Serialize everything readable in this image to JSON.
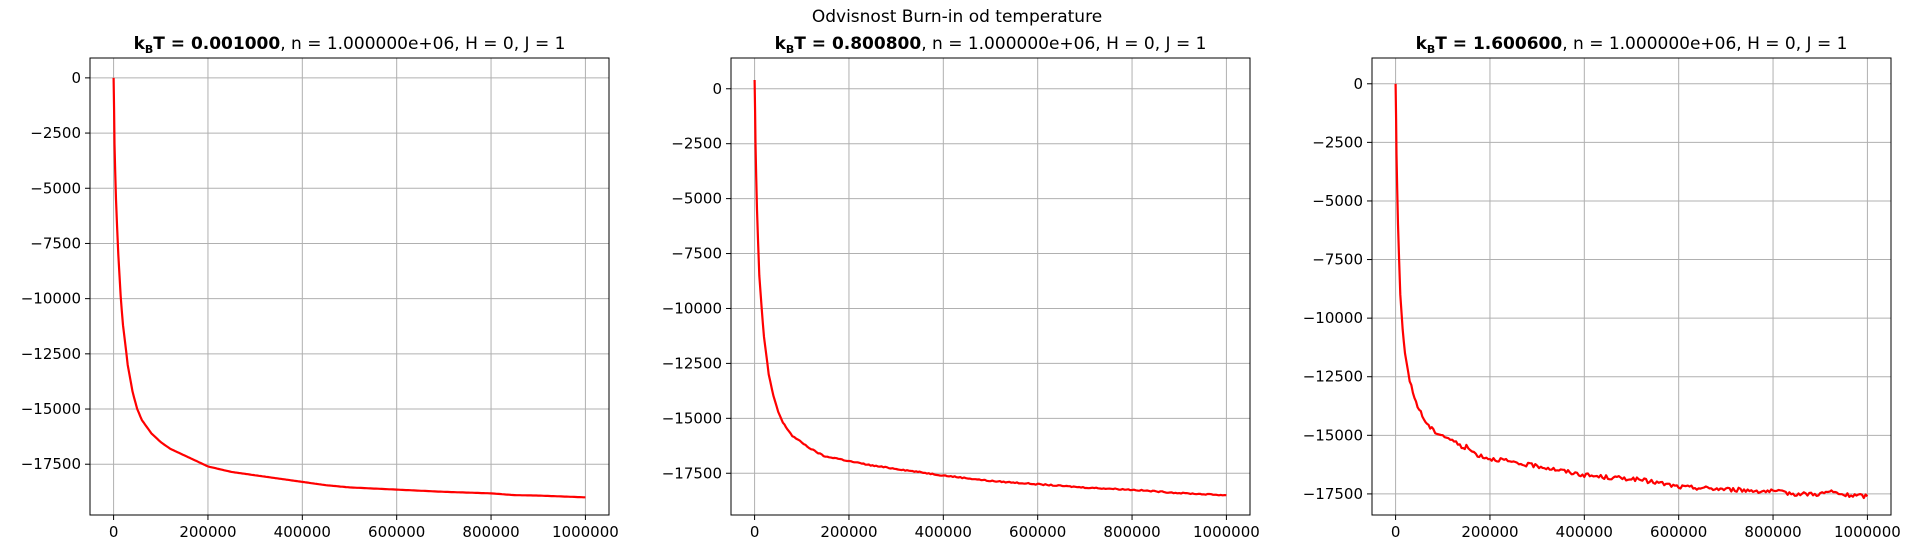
{
  "figure": {
    "suptitle": "Odvisnost Burn-in od temperature"
  },
  "chart_data": [
    {
      "type": "line",
      "title_bold": "k_B T = 0.001000",
      "title_rest": ", n = 1.000000e+06, H = 0, J = 1",
      "xlabel": "",
      "ylabel": "",
      "xlim": [
        -50000,
        1050000
      ],
      "ylim": [
        -19800,
        900
      ],
      "xticks": [
        0,
        200000,
        400000,
        600000,
        800000,
        1000000
      ],
      "yticks": [
        0,
        -2500,
        -5000,
        -7500,
        -10000,
        -12500,
        -15000,
        -17500
      ],
      "grid": true,
      "color": "#ff0000",
      "noise": 0,
      "series": [
        {
          "x": [
            0,
            2000,
            5000,
            10000,
            15000,
            20000,
            30000,
            40000,
            50000,
            60000,
            70000,
            80000,
            100000,
            120000,
            150000,
            200000,
            250000,
            300000,
            350000,
            400000,
            450000,
            500000,
            600000,
            700000,
            800000,
            850000,
            900000,
            1000000
          ],
          "y": [
            0,
            -3000,
            -5500,
            -8000,
            -9900,
            -11200,
            -13000,
            -14200,
            -15000,
            -15500,
            -15800,
            -16100,
            -16500,
            -16800,
            -17100,
            -17600,
            -17850,
            -18000,
            -18150,
            -18300,
            -18450,
            -18550,
            -18650,
            -18750,
            -18820,
            -18900,
            -18920,
            -19000
          ]
        }
      ]
    },
    {
      "type": "line",
      "title_bold": "k_B T = 0.800800",
      "title_rest": ", n = 1.000000e+06, H = 0, J = 1",
      "xlabel": "",
      "ylabel": "",
      "xlim": [
        -50000,
        1050000
      ],
      "ylim": [
        -19400,
        1400
      ],
      "xticks": [
        0,
        200000,
        400000,
        600000,
        800000,
        1000000
      ],
      "yticks": [
        0,
        -2500,
        -5000,
        -7500,
        -10000,
        -12500,
        -15000,
        -17500
      ],
      "grid": true,
      "color": "#ff0000",
      "noise": 25,
      "series": [
        {
          "x": [
            0,
            2000,
            5000,
            10000,
            15000,
            20000,
            30000,
            40000,
            50000,
            60000,
            70000,
            80000,
            100000,
            120000,
            150000,
            170000,
            200000,
            250000,
            300000,
            350000,
            400000,
            500000,
            600000,
            700000,
            800000,
            900000,
            1000000
          ],
          "y": [
            400,
            -2500,
            -5500,
            -8500,
            -10000,
            -11300,
            -13000,
            -14000,
            -14700,
            -15200,
            -15500,
            -15800,
            -16100,
            -16400,
            -16750,
            -16800,
            -16950,
            -17150,
            -17300,
            -17450,
            -17600,
            -17850,
            -18000,
            -18150,
            -18250,
            -18400,
            -18500
          ]
        }
      ]
    },
    {
      "type": "line",
      "title_bold": "k_B T = 1.600600",
      "title_rest": ", n = 1.000000e+06, H = 0, J = 1",
      "xlabel": "",
      "ylabel": "",
      "xlim": [
        -50000,
        1050000
      ],
      "ylim": [
        -18400,
        1100
      ],
      "xticks": [
        0,
        200000,
        400000,
        600000,
        800000,
        1000000
      ],
      "yticks": [
        0,
        -2500,
        -5000,
        -7500,
        -10000,
        -12500,
        -15000,
        -17500
      ],
      "grid": true,
      "color": "#ff0000",
      "noise": 90,
      "series": [
        {
          "x": [
            0,
            2000,
            5000,
            10000,
            15000,
            20000,
            30000,
            40000,
            50000,
            60000,
            70000,
            80000,
            100000,
            120000,
            140000,
            150000,
            170000,
            200000,
            230000,
            250000,
            300000,
            350000,
            400000,
            450000,
            500000,
            550000,
            600000,
            650000,
            700000,
            750000,
            800000,
            850000,
            900000,
            920000,
            950000,
            1000000
          ],
          "y": [
            0,
            -3000,
            -6000,
            -9000,
            -10500,
            -11500,
            -12700,
            -13400,
            -13900,
            -14300,
            -14600,
            -14800,
            -15000,
            -15200,
            -15500,
            -15500,
            -15800,
            -16000,
            -16050,
            -16200,
            -16300,
            -16500,
            -16700,
            -16800,
            -16850,
            -17000,
            -17200,
            -17250,
            -17300,
            -17350,
            -17400,
            -17500,
            -17500,
            -17400,
            -17550,
            -17600
          ]
        }
      ]
    }
  ]
}
